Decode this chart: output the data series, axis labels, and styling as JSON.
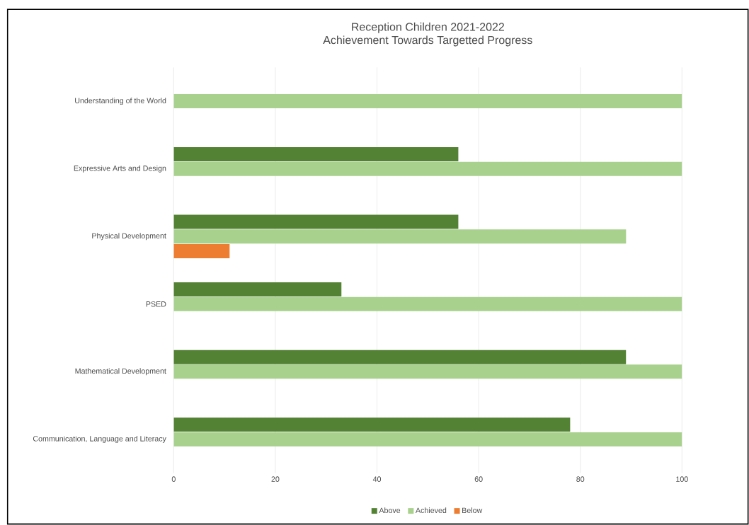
{
  "chart_data": {
    "type": "bar",
    "orientation": "horizontal",
    "title": "Reception Children 2021-2022",
    "subtitle": "Achievement Towards Targetted Progress",
    "categories": [
      "Understanding of the World",
      "Expressive Arts and Design",
      "Physical Development",
      "PSED",
      "Mathematical Development",
      "Communication, Language and Literacy"
    ],
    "series": [
      {
        "name": "Above",
        "color": "#548235",
        "values": [
          null,
          56,
          56,
          33,
          89,
          78
        ]
      },
      {
        "name": "Achieved",
        "color": "#a9d18e",
        "values": [
          100,
          100,
          89,
          100,
          100,
          100
        ]
      },
      {
        "name": "Below",
        "color": "#ed7d31",
        "values": [
          null,
          null,
          11,
          null,
          null,
          null
        ]
      }
    ],
    "xlim": [
      0,
      100
    ],
    "xticks": [
      0,
      20,
      40,
      60,
      80,
      100
    ],
    "grid": "x",
    "legend": "bottom"
  }
}
